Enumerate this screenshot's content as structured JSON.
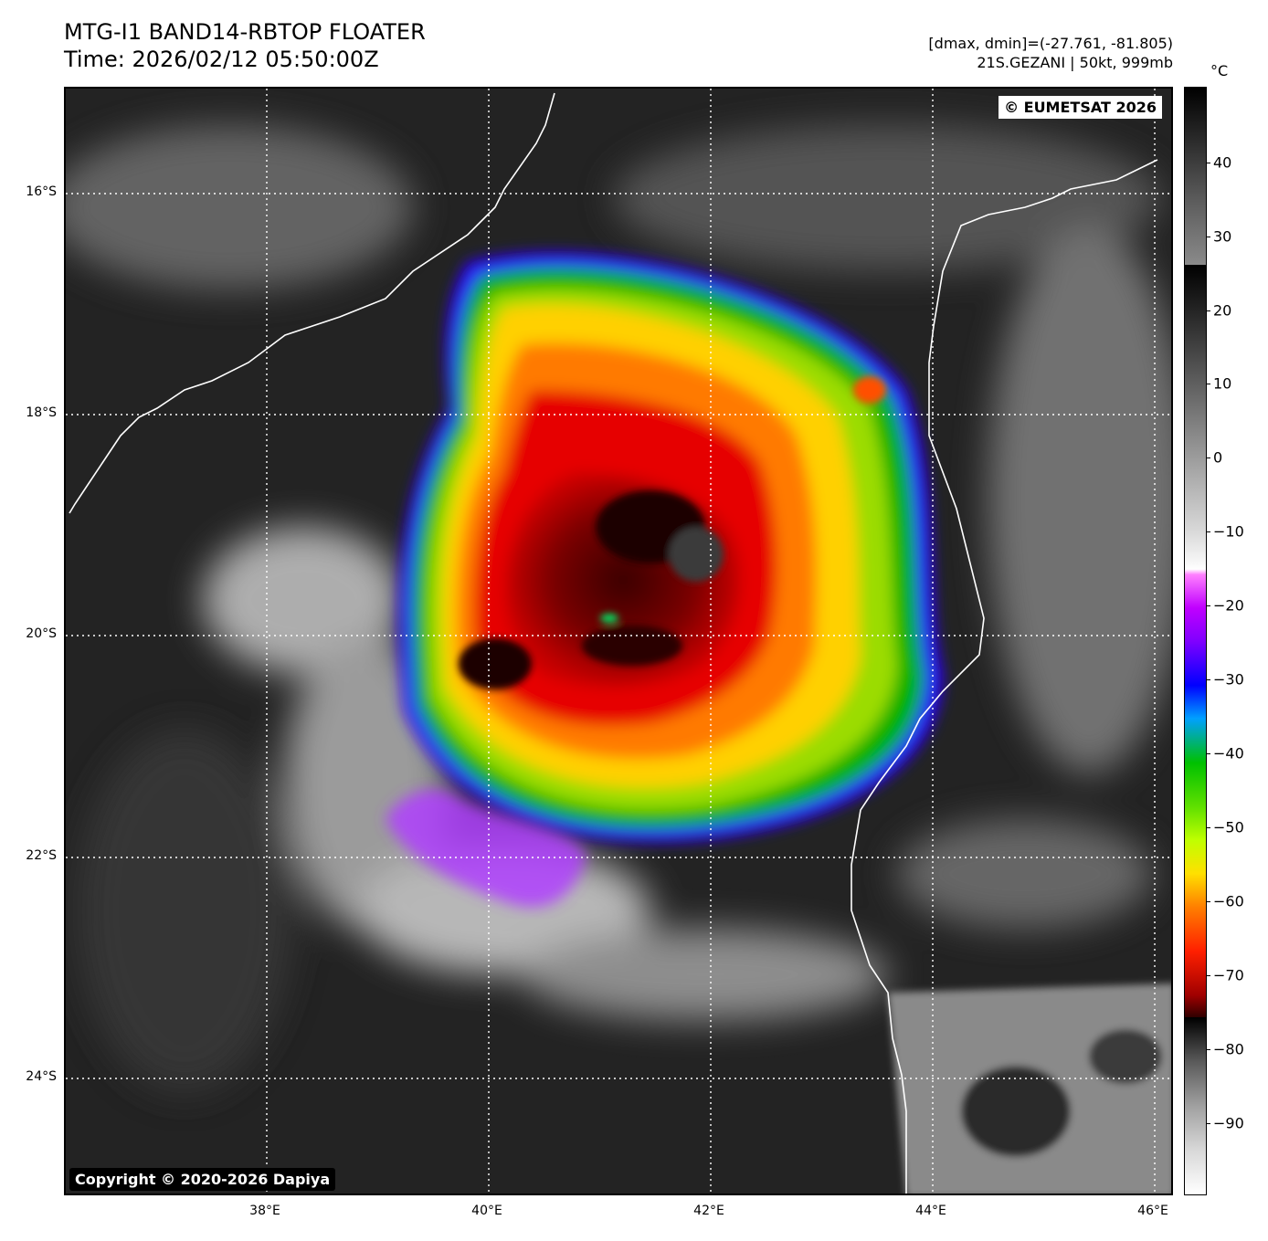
{
  "title": {
    "line1": "MTG-I1 BAND14-RBTOP FLOATER",
    "line2": "Time: 2026/02/12 05:50:00Z"
  },
  "info": {
    "line1": "[dmax, dmin]=(-27.761, -81.805)",
    "line2": "21S.GEZANI | 50kt, 999mb"
  },
  "watermarks": {
    "eumetsat": "© EUMETSAT 2026",
    "copyright": "Copyright © 2020-2026 Dapiya"
  },
  "axes": {
    "lat_labels": [
      "16°S",
      "18°S",
      "20°S",
      "22°S",
      "24°S"
    ],
    "lon_labels": [
      "38°E",
      "40°E",
      "42°E",
      "44°E",
      "46°E"
    ]
  },
  "colorbar": {
    "unit": "°C",
    "ticks": [
      "40",
      "30",
      "20",
      "10",
      "0",
      "−10",
      "−20",
      "−30",
      "−40",
      "−50",
      "−60",
      "−70",
      "−80",
      "−90"
    ]
  }
}
